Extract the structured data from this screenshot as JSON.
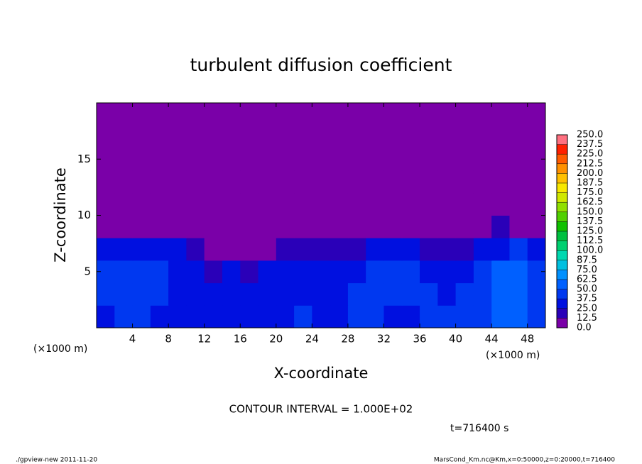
{
  "chart_data": {
    "type": "contour",
    "title": "turbulent diffusion coefficient",
    "x_label": "X-coordinate",
    "y_label": "Z-coordinate",
    "x_unit": "(×1000 m)",
    "x_unit_right": "(×1000 m)",
    "annotation": "CONTOUR INTERVAL = 1.000E+02",
    "time_label": "t=716400 s",
    "footer_left": "./gpview-new  2011-11-20",
    "footer_right": "MarsCond_Km.nc@Km,x=0:50000,z=0:20000,t=716400",
    "xlim": [
      0,
      50
    ],
    "ylim": [
      0,
      20
    ],
    "xticks": [
      4,
      8,
      12,
      16,
      20,
      24,
      28,
      32,
      36,
      40,
      44,
      48
    ],
    "yticks": [
      5,
      10,
      15
    ],
    "x": [
      1,
      3,
      5,
      7,
      9,
      11,
      13,
      15,
      17,
      19,
      21,
      23,
      25,
      27,
      29,
      31,
      33,
      35,
      37,
      39,
      41,
      43,
      45,
      47,
      49
    ],
    "y": [
      1,
      3,
      5,
      7,
      9,
      11,
      13,
      15,
      17,
      19
    ],
    "z": [
      [
        35,
        38,
        40,
        36,
        30,
        33,
        30,
        28,
        32,
        35,
        30,
        38,
        36,
        34,
        40,
        38,
        35,
        37,
        40,
        42,
        38,
        45,
        55,
        60,
        45
      ],
      [
        40,
        45,
        42,
        38,
        35,
        30,
        28,
        25,
        30,
        28,
        35,
        30,
        33,
        30,
        38,
        40,
        45,
        42,
        38,
        36,
        40,
        48,
        55,
        58,
        42
      ],
      [
        38,
        42,
        45,
        40,
        35,
        28,
        22,
        25,
        20,
        28,
        30,
        25,
        30,
        28,
        32,
        38,
        45,
        40,
        35,
        30,
        35,
        42,
        50,
        52,
        40
      ],
      [
        30,
        32,
        30,
        28,
        25,
        18,
        10,
        8,
        12,
        10,
        15,
        18,
        20,
        15,
        22,
        28,
        30,
        25,
        20,
        18,
        22,
        30,
        35,
        38,
        30
      ],
      [
        0,
        0,
        0,
        5,
        0,
        0,
        0,
        0,
        0,
        0,
        0,
        0,
        0,
        0,
        0,
        0,
        0,
        0,
        0,
        0,
        0,
        10,
        15,
        12,
        5
      ],
      [
        0,
        0,
        0,
        0,
        0,
        0,
        0,
        0,
        0,
        0,
        0,
        0,
        0,
        0,
        0,
        0,
        0,
        0,
        0,
        0,
        0,
        0,
        0,
        0,
        0
      ],
      [
        0,
        0,
        0,
        0,
        0,
        0,
        0,
        0,
        0,
        0,
        0,
        0,
        0,
        0,
        0,
        0,
        0,
        0,
        0,
        0,
        0,
        0,
        0,
        0,
        0
      ],
      [
        0,
        0,
        0,
        0,
        0,
        0,
        0,
        0,
        0,
        0,
        0,
        0,
        0,
        0,
        0,
        0,
        0,
        0,
        0,
        0,
        0,
        0,
        0,
        0,
        0
      ],
      [
        0,
        0,
        0,
        0,
        0,
        0,
        0,
        0,
        0,
        0,
        0,
        0,
        0,
        0,
        0,
        0,
        0,
        0,
        0,
        0,
        0,
        0,
        0,
        0,
        0
      ],
      [
        0,
        0,
        0,
        0,
        0,
        0,
        0,
        0,
        0,
        0,
        0,
        0,
        0,
        0,
        0,
        0,
        0,
        0,
        0,
        0,
        0,
        0,
        0,
        0,
        0
      ]
    ],
    "levels": [
      {
        "value": 0,
        "label": "0.0"
      },
      {
        "value": 12.5,
        "label": "12.5"
      },
      {
        "value": 25,
        "label": "25.0"
      },
      {
        "value": 37.5,
        "label": "37.5"
      },
      {
        "value": 50,
        "label": "50.0"
      },
      {
        "value": 62.5,
        "label": "62.5"
      },
      {
        "value": 75,
        "label": "75.0"
      },
      {
        "value": 87.5,
        "label": "87.5"
      },
      {
        "value": 100,
        "label": "100.0"
      },
      {
        "value": 112.5,
        "label": "112.5"
      },
      {
        "value": 125,
        "label": "125.0"
      },
      {
        "value": 137.5,
        "label": "137.5"
      },
      {
        "value": 150,
        "label": "150.0"
      },
      {
        "value": 162.5,
        "label": "162.5"
      },
      {
        "value": 175,
        "label": "175.0"
      },
      {
        "value": 187.5,
        "label": "187.5"
      },
      {
        "value": 200,
        "label": "200.0"
      },
      {
        "value": 212.5,
        "label": "212.5"
      },
      {
        "value": 225,
        "label": "225.0"
      },
      {
        "value": 237.5,
        "label": "237.5"
      },
      {
        "value": 250,
        "label": "250.0"
      }
    ],
    "colors": [
      "#7a00a8",
      "#2a00b8",
      "#0010e0",
      "#0038f0",
      "#0060ff",
      "#0090ff",
      "#00c0e0",
      "#00d8b0",
      "#00d070",
      "#00c040",
      "#10c000",
      "#50d000",
      "#90e000",
      "#d0e800",
      "#f8e800",
      "#ffc000",
      "#ff9000",
      "#ff5a00",
      "#ff2000",
      "#ff7080"
    ]
  }
}
